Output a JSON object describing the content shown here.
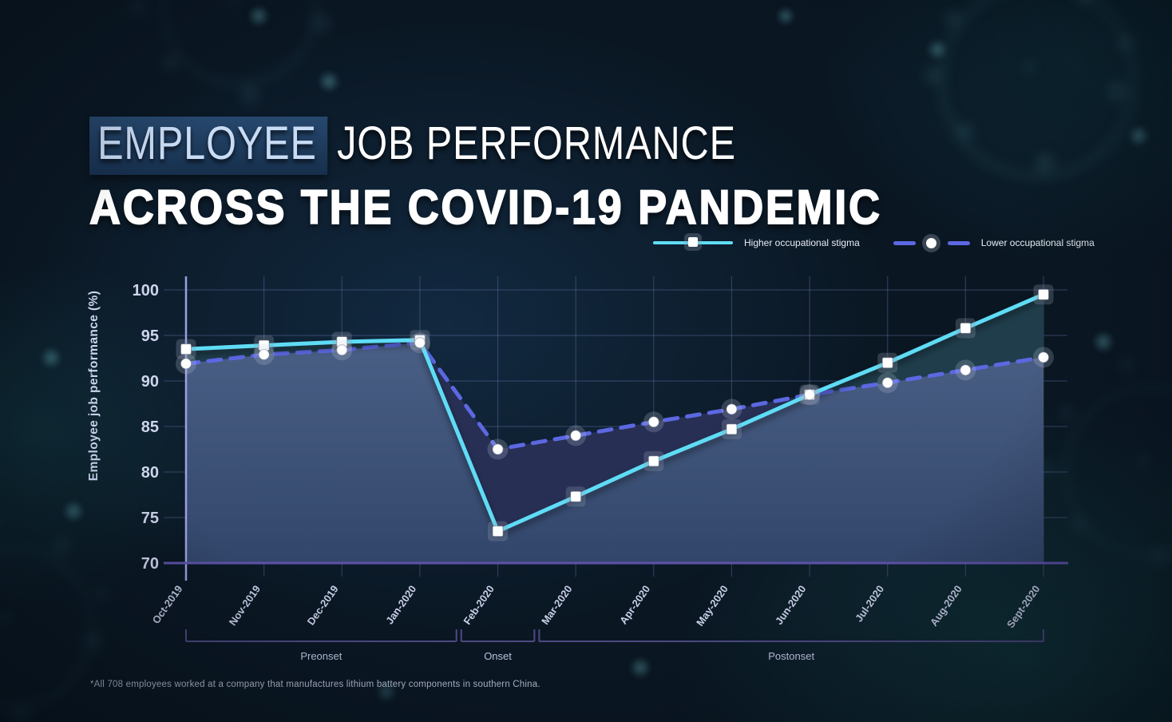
{
  "title": {
    "highlight": "EMPLOYEE",
    "rest": "JOB PERFORMANCE",
    "line2": "ACROSS THE COVID-19 PANDEMIC"
  },
  "footnote": "*All 708 employees worked at a company that manufactures lithium battery components in southern China.",
  "colors": {
    "background": "#0a1723",
    "higher_series": "#5fdcf5",
    "lower_series": "#5c68e2",
    "axis_purple": "#5e51a8",
    "y_axis_line": "#9aa0e2",
    "gridline": "rgba(130,140,205,0.3)",
    "fill_steel_top": "#4a5f85",
    "fill_steel_bottom": "#32466b",
    "fill_between_higher_on_top": "#1f3d4b",
    "fill_between_lower_on_top": "#272f54",
    "tick_text": "#ced4ec",
    "highlight_box": "#27486e"
  },
  "chart_data": {
    "type": "line",
    "title": "Employee job performance across the COVID-19 pandemic",
    "categories": [
      "Oct-2019",
      "Nov-2019",
      "Dec-2019",
      "Jan-2020",
      "Feb-2020",
      "Mar-2020",
      "Apr-2020",
      "May-2020",
      "Jun-2020",
      "Jul-2020",
      "Aug-2020",
      "Sept-2020"
    ],
    "series": [
      {
        "name": "Higher occupational stigma",
        "style": "solid",
        "marker": "square",
        "color": "#5fdcf5",
        "values": [
          93.5,
          93.9,
          94.3,
          94.5,
          73.5,
          77.3,
          81.2,
          84.7,
          88.5,
          92.0,
          95.8,
          99.5
        ]
      },
      {
        "name": "Lower occupational stigma",
        "style": "dashed",
        "marker": "circle",
        "color": "#5c68e2",
        "values": [
          91.9,
          92.9,
          93.4,
          94.2,
          82.5,
          84.0,
          85.5,
          86.9,
          88.5,
          89.8,
          91.2,
          92.6
        ]
      }
    ],
    "xlabel": "",
    "ylabel": "Employee job performance (%)",
    "ylim": [
      70,
      100
    ],
    "yticks": [
      70,
      75,
      80,
      85,
      90,
      95,
      100
    ],
    "grid": true,
    "legend_position": "top-right",
    "phases": [
      {
        "label": "Preonset",
        "from": 0,
        "to": 3
      },
      {
        "label": "Onset",
        "from": 4,
        "to": 4
      },
      {
        "label": "Postonset",
        "from": 5,
        "to": 11
      }
    ]
  }
}
